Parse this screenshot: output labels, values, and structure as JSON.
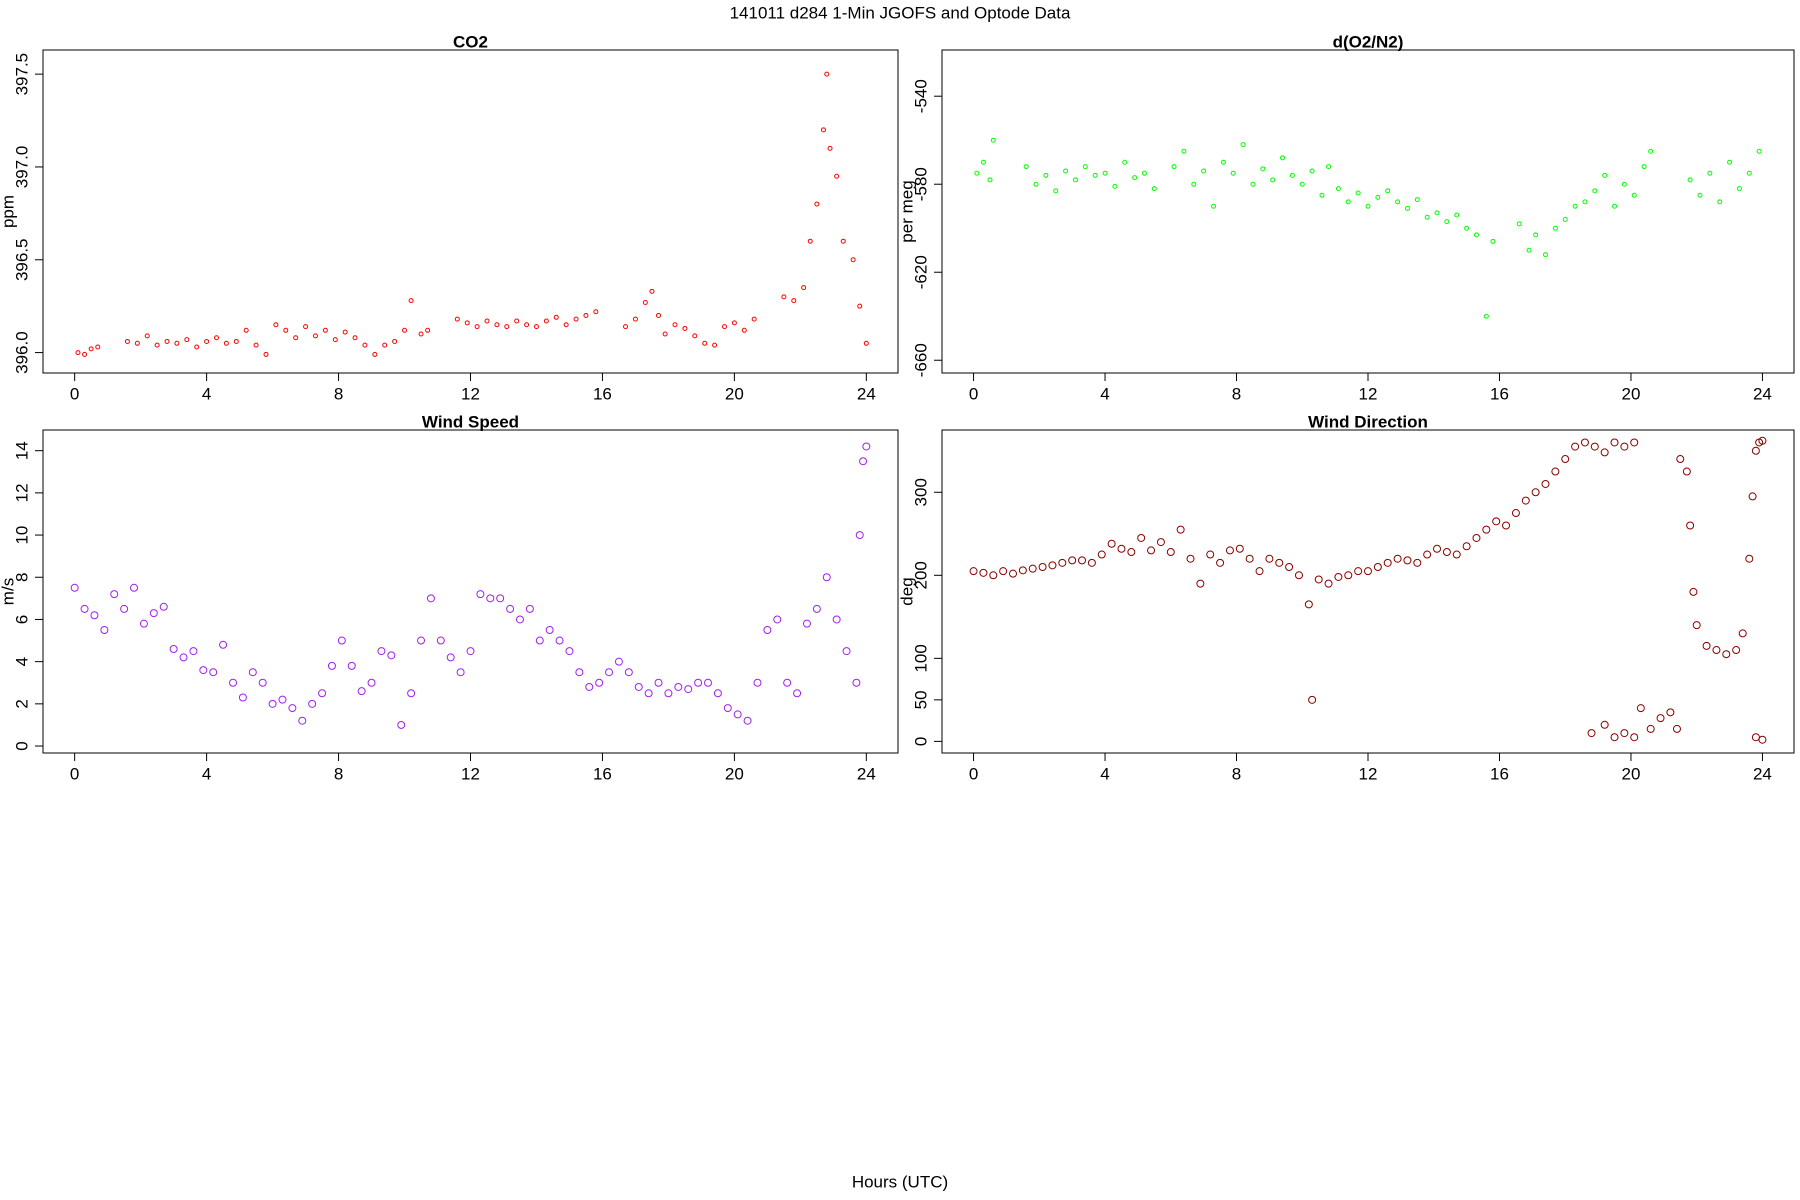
{
  "title": "141011   d284   1-Min  JGOFS and Optode Data",
  "x_label": "Hours (UTC)",
  "chart_data": [
    {
      "type": "scatter",
      "title": "CO2",
      "y_label": "ppm",
      "color": "#ff0000",
      "xlim": [
        -0.96,
        24.96
      ],
      "xticks": [
        0,
        4,
        8,
        12,
        16,
        20,
        24
      ],
      "ylim": [
        395.89,
        397.63
      ],
      "yticks": [
        {
          "value": 396,
          "label": "396.0"
        },
        396.5,
        {
          "value": 397,
          "label": "397.0"
        },
        397.5
      ],
      "x": [
        0.1,
        0.3,
        0.5,
        0.7,
        1.6,
        1.9,
        2.2,
        2.5,
        2.8,
        3.1,
        3.4,
        3.7,
        4.0,
        4.3,
        4.6,
        4.9,
        5.2,
        5.5,
        5.8,
        6.1,
        6.4,
        6.7,
        7.0,
        7.3,
        7.6,
        7.9,
        8.2,
        8.5,
        8.8,
        9.1,
        9.4,
        9.7,
        10.0,
        10.2,
        10.5,
        10.7,
        11.6,
        11.9,
        12.2,
        12.5,
        12.8,
        13.1,
        13.4,
        13.7,
        14.0,
        14.3,
        14.6,
        14.9,
        15.2,
        15.5,
        15.8,
        16.7,
        17.0,
        17.3,
        17.5,
        17.7,
        17.9,
        18.2,
        18.5,
        18.8,
        19.1,
        19.4,
        19.7,
        20.0,
        20.3,
        20.6,
        21.5,
        21.8,
        22.1,
        22.3,
        22.5,
        22.7,
        22.8,
        22.9,
        23.1,
        23.3,
        23.6,
        23.8,
        24.0
      ],
      "values": [
        396.0,
        395.99,
        396.02,
        396.03,
        396.06,
        396.05,
        396.09,
        396.04,
        396.06,
        396.05,
        396.07,
        396.03,
        396.06,
        396.08,
        396.05,
        396.06,
        396.12,
        396.04,
        395.99,
        396.15,
        396.12,
        396.08,
        396.14,
        396.09,
        396.12,
        396.07,
        396.11,
        396.08,
        396.04,
        395.99,
        396.04,
        396.06,
        396.12,
        396.28,
        396.1,
        396.12,
        396.18,
        396.16,
        396.14,
        396.17,
        396.15,
        396.14,
        396.17,
        396.15,
        396.14,
        396.17,
        396.19,
        396.15,
        396.18,
        396.2,
        396.22,
        396.14,
        396.18,
        396.27,
        396.33,
        396.2,
        396.1,
        396.15,
        396.13,
        396.09,
        396.05,
        396.04,
        396.14,
        396.16,
        396.12,
        396.18,
        396.3,
        396.28,
        396.35,
        396.6,
        396.8,
        397.2,
        397.5,
        397.1,
        396.95,
        396.6,
        396.5,
        396.25,
        396.05
      ]
    },
    {
      "type": "scatter",
      "title": "d(O2/N2)",
      "y_label": "per meg",
      "color": "#00ff00",
      "xlim": [
        -0.96,
        24.96
      ],
      "xticks": [
        0,
        4,
        8,
        12,
        16,
        20,
        24
      ],
      "ylim": [
        -665.8,
        -519
      ],
      "yticks": [
        -660,
        -620,
        -580,
        -540
      ],
      "x": [
        0.1,
        0.3,
        0.5,
        0.6,
        1.6,
        1.9,
        2.2,
        2.5,
        2.8,
        3.1,
        3.4,
        3.7,
        4.0,
        4.3,
        4.6,
        4.9,
        5.2,
        5.5,
        6.1,
        6.4,
        6.7,
        7.0,
        7.3,
        7.6,
        7.9,
        8.2,
        8.5,
        8.8,
        9.1,
        9.4,
        9.7,
        10.0,
        10.3,
        10.6,
        10.8,
        11.1,
        11.4,
        11.7,
        12.0,
        12.3,
        12.6,
        12.9,
        13.2,
        13.5,
        13.8,
        14.1,
        14.4,
        14.7,
        15.0,
        15.3,
        15.6,
        15.8,
        16.6,
        16.9,
        17.1,
        17.4,
        17.7,
        18.0,
        18.3,
        18.6,
        18.9,
        19.2,
        19.5,
        19.8,
        20.1,
        20.4,
        20.6,
        21.8,
        22.1,
        22.4,
        22.7,
        23.0,
        23.3,
        23.6,
        23.9
      ],
      "values": [
        -575,
        -570,
        -578,
        -560,
        -572,
        -580,
        -576,
        -583,
        -574,
        -578,
        -572,
        -576,
        -575,
        -581,
        -570,
        -577,
        -575,
        -582,
        -572,
        -565,
        -580,
        -574,
        -590,
        -570,
        -575,
        -562,
        -580,
        -573,
        -578,
        -568,
        -576,
        -580,
        -574,
        -585,
        -572,
        -582,
        -588,
        -584,
        -590,
        -586,
        -583,
        -588,
        -591,
        -587,
        -595,
        -593,
        -597,
        -594,
        -600,
        -603,
        -640,
        -606,
        -598,
        -610,
        -603,
        -612,
        -600,
        -596,
        -590,
        -588,
        -583,
        -576,
        -590,
        -580,
        -585,
        -572,
        -565,
        -578,
        -585,
        -575,
        -588,
        -570,
        -582,
        -575,
        -565
      ]
    },
    {
      "type": "scatter",
      "title": "Wind Speed",
      "y_label": "m/s",
      "color": "#a020f0",
      "xlim": [
        -0.96,
        24.96
      ],
      "xticks": [
        0,
        4,
        8,
        12,
        16,
        20,
        24
      ],
      "ylim": [
        -0.33,
        14.98
      ],
      "yticks": [
        0,
        2,
        4,
        6,
        8,
        10,
        12,
        14
      ],
      "x": [
        0.0,
        0.3,
        0.6,
        0.9,
        1.2,
        1.5,
        1.8,
        2.1,
        2.4,
        2.7,
        3.0,
        3.3,
        3.6,
        3.9,
        4.2,
        4.5,
        4.8,
        5.1,
        5.4,
        5.7,
        6.0,
        6.3,
        6.6,
        6.9,
        7.2,
        7.5,
        7.8,
        8.1,
        8.4,
        8.7,
        9.0,
        9.3,
        9.6,
        9.9,
        10.2,
        10.5,
        10.8,
        11.1,
        11.4,
        11.7,
        12.0,
        12.3,
        12.6,
        12.9,
        13.2,
        13.5,
        13.8,
        14.1,
        14.4,
        14.7,
        15.0,
        15.3,
        15.6,
        15.9,
        16.2,
        16.5,
        16.8,
        17.1,
        17.4,
        17.7,
        18.0,
        18.3,
        18.6,
        18.9,
        19.2,
        19.5,
        19.8,
        20.1,
        20.4,
        20.7,
        21.0,
        21.3,
        21.6,
        21.9,
        22.2,
        22.5,
        22.8,
        23.1,
        23.4,
        23.7,
        23.8,
        23.9,
        24.0
      ],
      "values": [
        7.5,
        6.5,
        6.2,
        5.5,
        7.2,
        6.5,
        7.5,
        5.8,
        6.3,
        6.6,
        4.6,
        4.2,
        4.5,
        3.6,
        3.5,
        4.8,
        3.0,
        2.3,
        3.5,
        3.0,
        2.0,
        2.2,
        1.8,
        1.2,
        2.0,
        2.5,
        3.8,
        5.0,
        3.8,
        2.6,
        3.0,
        4.5,
        4.3,
        1.0,
        2.5,
        5.0,
        7.0,
        5.0,
        4.2,
        3.5,
        4.5,
        7.2,
        7.0,
        7.0,
        6.5,
        6.0,
        6.5,
        5.0,
        5.5,
        5.0,
        4.5,
        3.5,
        2.8,
        3.0,
        3.5,
        4.0,
        3.5,
        2.8,
        2.5,
        3.0,
        2.5,
        2.8,
        2.7,
        3.0,
        3.0,
        2.5,
        1.8,
        1.5,
        1.2,
        3.0,
        5.5,
        6.0,
        3.0,
        2.5,
        5.8,
        6.5,
        8.0,
        6.0,
        4.5,
        3.0,
        10,
        13.5,
        14.2
      ]
    },
    {
      "type": "scatter",
      "title": "Wind Direction",
      "y_label": "deg",
      "color": "#8b0000",
      "xlim": [
        -0.96,
        24.96
      ],
      "xticks": [
        0,
        4,
        8,
        12,
        16,
        20,
        24
      ],
      "ylim": [
        -14,
        375
      ],
      "yticks": [
        0,
        50,
        100,
        200,
        300
      ],
      "x": [
        0.0,
        0.3,
        0.6,
        0.9,
        1.2,
        1.5,
        1.8,
        2.1,
        2.4,
        2.7,
        3.0,
        3.3,
        3.6,
        3.9,
        4.2,
        4.5,
        4.8,
        5.1,
        5.4,
        5.7,
        6.0,
        6.3,
        6.6,
        6.9,
        7.2,
        7.5,
        7.8,
        8.1,
        8.4,
        8.7,
        9.0,
        9.3,
        9.6,
        9.9,
        10.2,
        10.3,
        10.5,
        10.8,
        11.1,
        11.4,
        11.7,
        12.0,
        12.3,
        12.6,
        12.9,
        13.2,
        13.5,
        13.8,
        14.1,
        14.4,
        14.7,
        15.0,
        15.3,
        15.6,
        15.9,
        16.2,
        16.5,
        16.8,
        17.1,
        17.4,
        17.7,
        18.0,
        18.3,
        18.6,
        18.9,
        19.2,
        19.5,
        19.8,
        20.1,
        18.8,
        19.2,
        19.5,
        19.8,
        20.1,
        20.3,
        20.6,
        20.9,
        21.2,
        21.4,
        21.5,
        21.7,
        21.8,
        21.9,
        22.0,
        22.3,
        22.6,
        22.9,
        23.2,
        23.4,
        23.6,
        23.7,
        23.8,
        23.9,
        24.0,
        23.8,
        24.0
      ],
      "values": [
        205,
        203,
        200,
        205,
        202,
        206,
        208,
        210,
        212,
        215,
        218,
        218,
        215,
        225,
        238,
        232,
        228,
        245,
        230,
        240,
        228,
        255,
        220,
        190,
        225,
        215,
        230,
        232,
        220,
        205,
        220,
        215,
        210,
        200,
        165,
        50,
        195,
        190,
        198,
        200,
        205,
        205,
        210,
        215,
        220,
        218,
        215,
        225,
        232,
        228,
        225,
        235,
        245,
        255,
        265,
        260,
        275,
        290,
        300,
        310,
        325,
        340,
        355,
        360,
        355,
        348,
        360,
        355,
        360,
        10,
        20,
        5,
        10,
        5,
        40,
        15,
        28,
        35,
        15,
        340,
        325,
        260,
        180,
        140,
        115,
        110,
        105,
        110,
        130,
        220,
        295,
        350,
        360,
        362,
        5,
        2
      ]
    }
  ]
}
